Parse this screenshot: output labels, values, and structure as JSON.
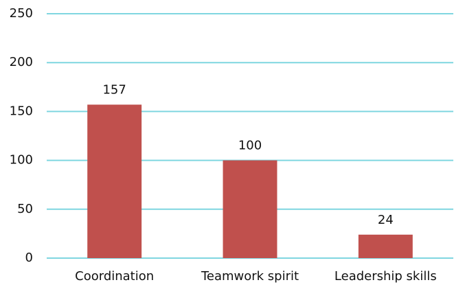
{
  "chart_data": {
    "type": "bar",
    "categories": [
      "Coordination",
      "Teamwork spirit",
      "Leadership skills"
    ],
    "values": [
      157,
      100,
      24
    ],
    "color": "#c0504d",
    "ylim": [
      0,
      250
    ],
    "yticks": [
      0,
      50,
      100,
      150,
      200,
      250
    ],
    "grid": true,
    "grid_color": "#7fd6e0",
    "data_labels": true
  }
}
